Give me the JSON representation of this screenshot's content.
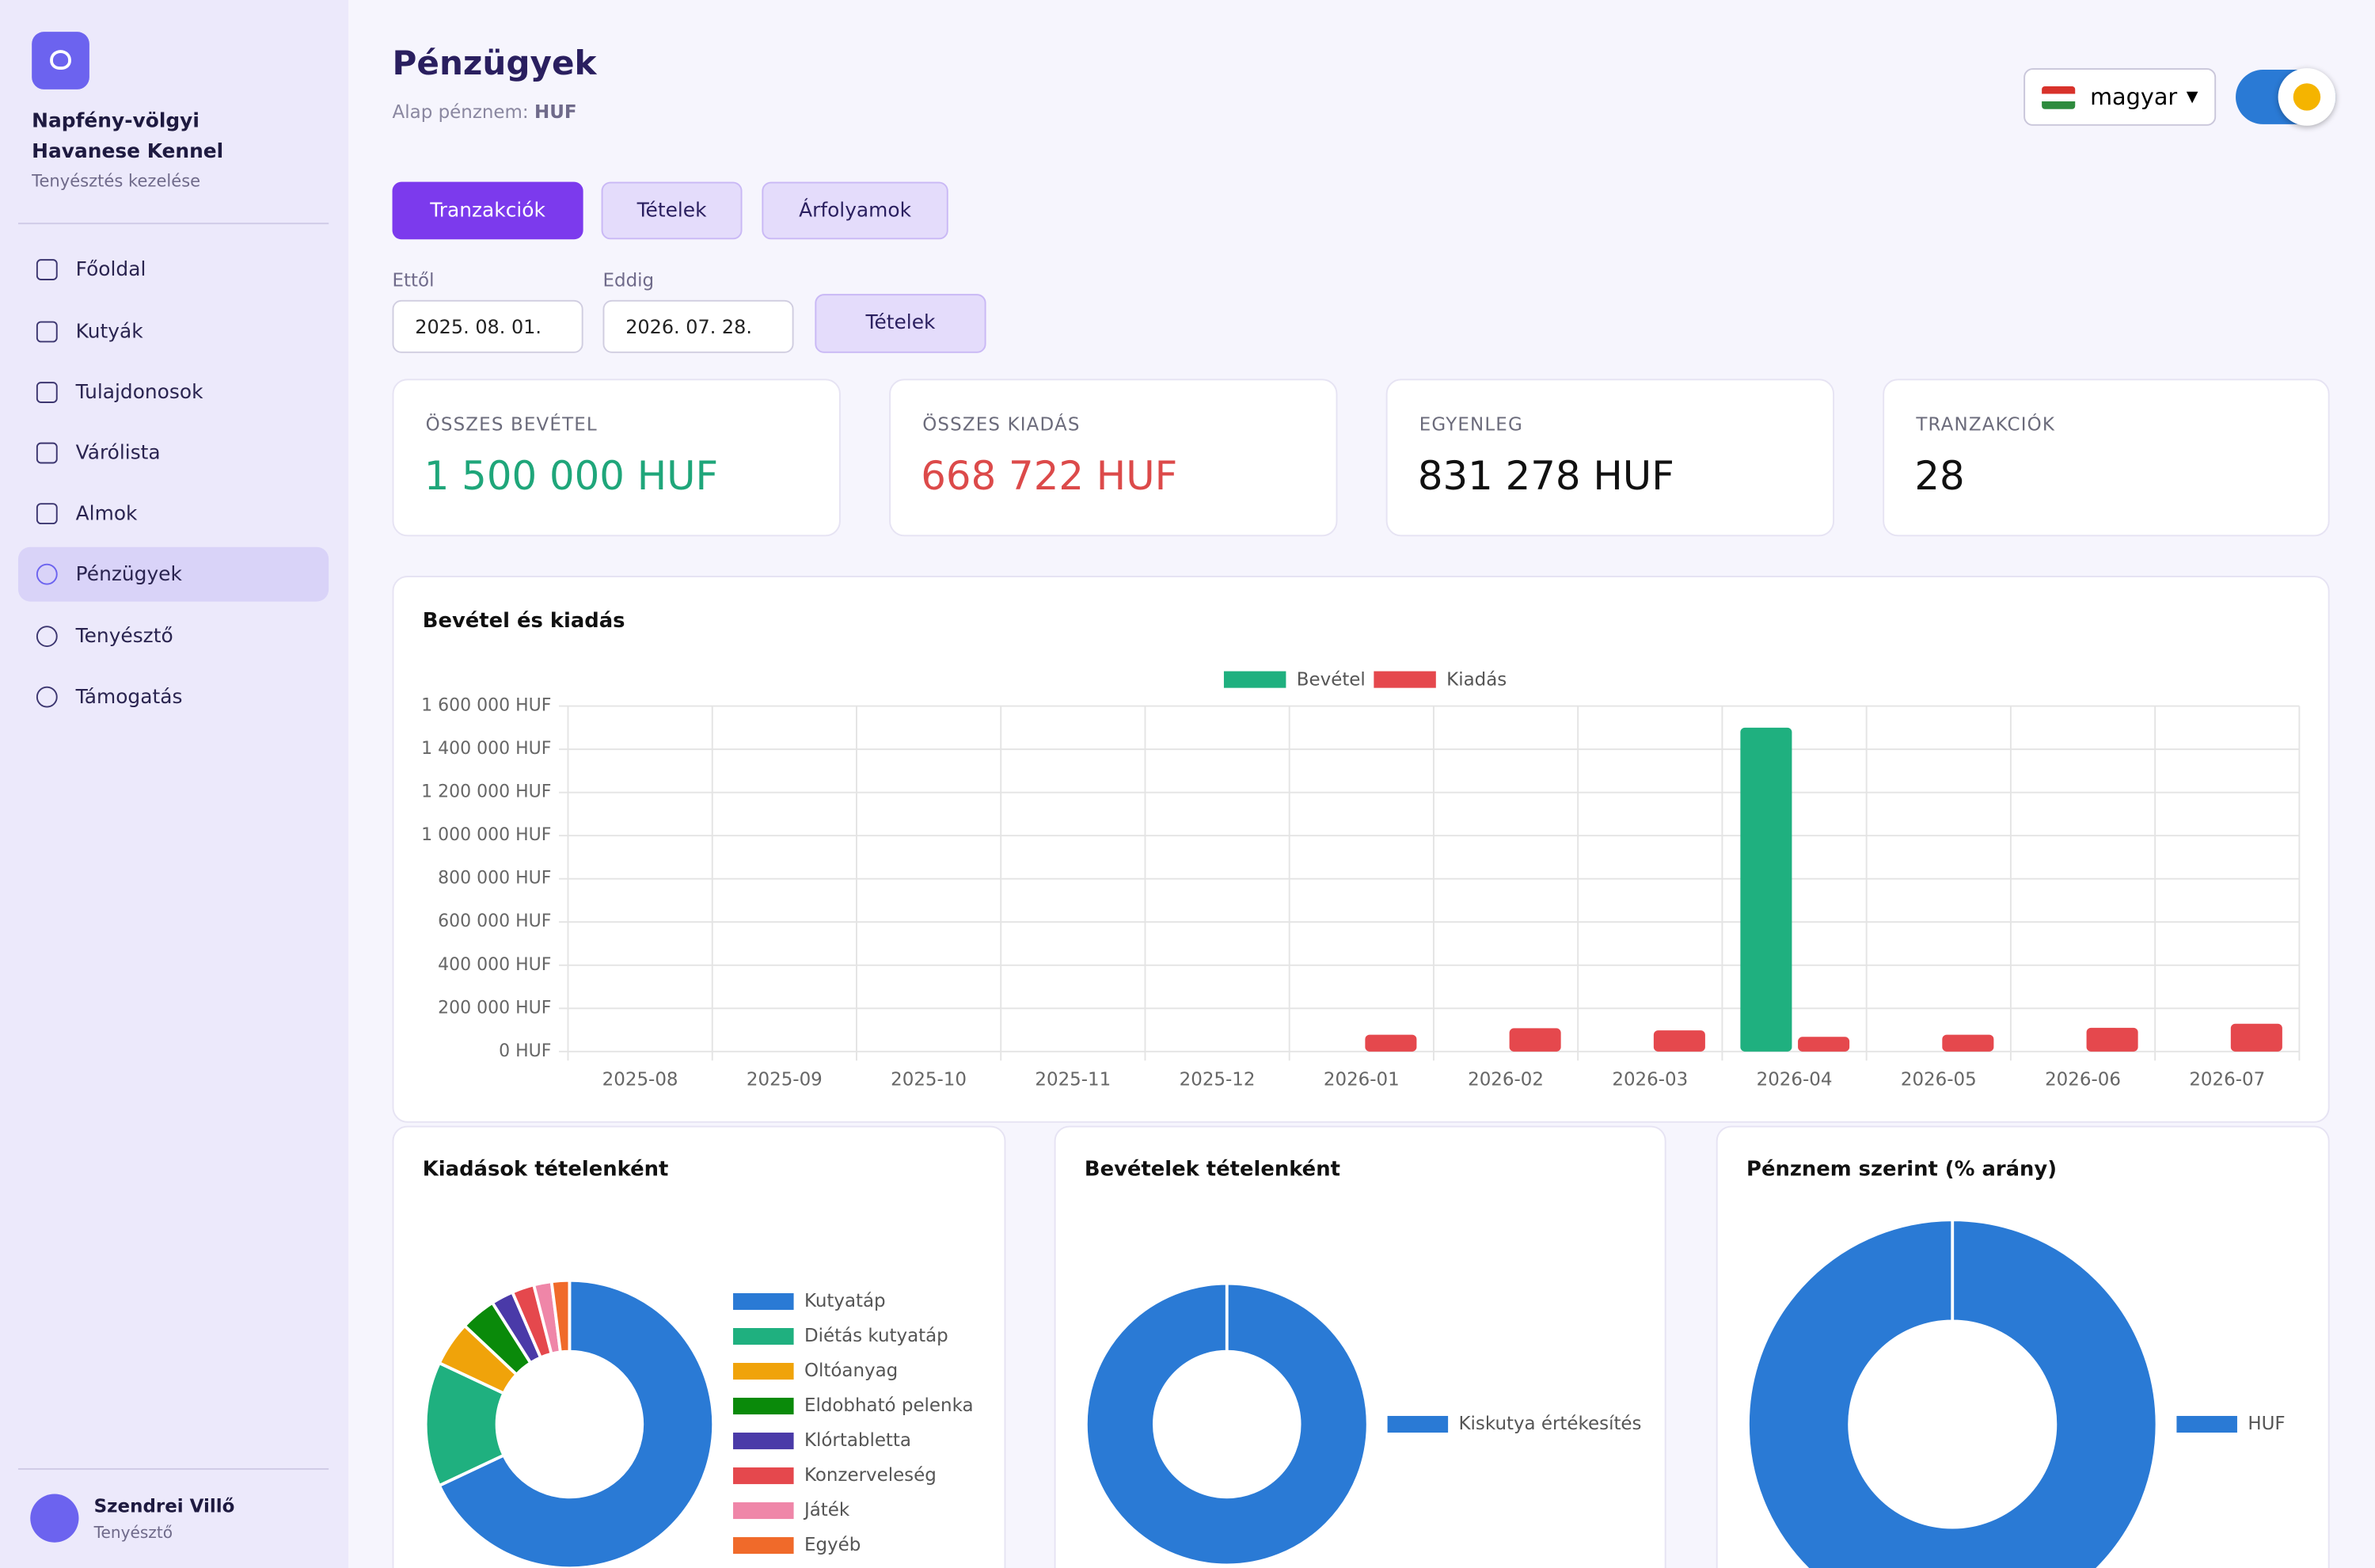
{
  "sidebar": {
    "kennel_name": "Napfény-völgyi Havanese Kennel",
    "subtitle": "Tenyésztés kezelése",
    "nav": [
      "Főoldal",
      "Kutyák",
      "Tulajdonosok",
      "Várólista",
      "Almok",
      "Pénzügyek",
      "Tenyésztő",
      "Támogatás"
    ],
    "user": {
      "name": "Szendrei Villő",
      "role": "Tenyésztő"
    }
  },
  "header": {
    "title": "Pénzügyek",
    "base_currency_label": "Alap pénznem:",
    "base_currency": "HUF",
    "language": "magyar"
  },
  "tabs": [
    "Tranzakciók",
    "Tételek",
    "Árfolyamok"
  ],
  "filters": {
    "from_label": "Ettől",
    "from": "2025. 08. 01.",
    "to_label": "Eddig",
    "to": "2026. 07. 28.",
    "category_button": "Tételek"
  },
  "cards": [
    {
      "label": "ÖSSZES BEVÉTEL",
      "value": "1 500 000 HUF"
    },
    {
      "label": "ÖSSZES KIADÁS",
      "value": "668 722 HUF"
    },
    {
      "label": "EGYENLEG",
      "value": "831 278 HUF"
    },
    {
      "label": "TRANZAKCIÓK",
      "value": "28"
    }
  ],
  "chart_data": [
    {
      "type": "bar",
      "title": "Bevétel és kiadás",
      "categories": [
        "2025-08",
        "2025-09",
        "2025-10",
        "2025-11",
        "2025-12",
        "2026-01",
        "2026-02",
        "2026-03",
        "2026-04",
        "2026-05",
        "2026-06",
        "2026-07"
      ],
      "series": [
        {
          "name": "Bevétel",
          "color": "#1fb07f",
          "values": [
            0,
            0,
            0,
            0,
            0,
            0,
            0,
            0,
            1500000,
            0,
            0,
            0
          ]
        },
        {
          "name": "Kiadás",
          "color": "#e5484d",
          "values": [
            0,
            0,
            0,
            0,
            0,
            78000,
            108000,
            98000,
            68000,
            78000,
            110000,
            128722
          ]
        }
      ],
      "ylim": [
        0,
        1600000
      ],
      "yticks": [
        {
          "value": 0,
          "label": "0 HUF"
        },
        {
          "value": 200000,
          "label": "200 000 HUF"
        },
        {
          "value": 400000,
          "label": "400 000 HUF"
        },
        {
          "value": 600000,
          "label": "600 000 HUF"
        },
        {
          "value": 800000,
          "label": "800 000 HUF"
        },
        {
          "value": 1000000,
          "label": "1 000 000 HUF"
        },
        {
          "value": 1200000,
          "label": "1 200 000 HUF"
        },
        {
          "value": 1400000,
          "label": "1 400 000 HUF"
        },
        {
          "value": 1600000,
          "label": "1 600 000 HUF"
        }
      ],
      "grid": true,
      "legend": "top"
    },
    {
      "type": "doughnut",
      "title": "Kiadások tételenként",
      "categories": [
        "Kutyatáp",
        "Diétás kutyatáp",
        "Oltóanyag",
        "Eldobható pelenka",
        "Klórtabletta",
        "Konzerveleség",
        "Játék",
        "Egyéb"
      ],
      "values": [
        68,
        14,
        5,
        4,
        2.5,
        2.5,
        2,
        2
      ],
      "colors": [
        "#2a7ad5",
        "#1fb07f",
        "#f0a30a",
        "#0a8a0a",
        "#4a3aa8",
        "#e5484d",
        "#ef86a8",
        "#f06a2a"
      ],
      "legend": "right"
    },
    {
      "type": "doughnut",
      "title": "Bevételek tételenként",
      "categories": [
        "Kiskutya értékesítés"
      ],
      "values": [
        100
      ],
      "colors": [
        "#2a7ad5"
      ],
      "legend": "right"
    },
    {
      "type": "doughnut",
      "title": "Pénznem szerint (% arány)",
      "categories": [
        "HUF"
      ],
      "values": [
        100
      ],
      "colors": [
        "#2a7ad5"
      ],
      "legend": "right"
    }
  ]
}
